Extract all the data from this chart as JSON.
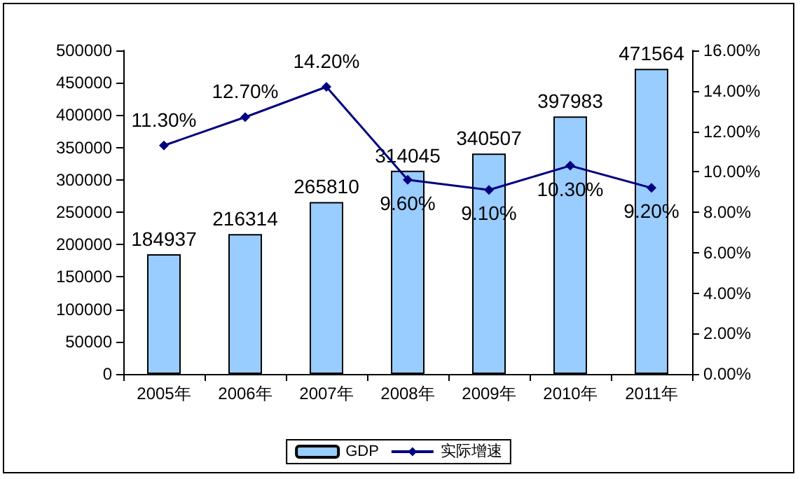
{
  "chart_data": {
    "type": "bar",
    "categories": [
      "2005年",
      "2006年",
      "2007年",
      "2008年",
      "2009年",
      "2010年",
      "2011年"
    ],
    "series": [
      {
        "name": "GDP",
        "type": "bar",
        "color": "#99ccff",
        "values": [
          184937,
          216314,
          265810,
          314045,
          340507,
          397983,
          471564
        ],
        "value_labels": [
          "184937",
          "216314",
          "265810",
          "314045",
          "340507",
          "397983",
          "471564"
        ]
      },
      {
        "name": "实际增速",
        "type": "line",
        "axis": "y2",
        "color": "#000080",
        "marker": "diamond",
        "values": [
          11.3,
          12.7,
          14.2,
          9.6,
          9.1,
          10.3,
          9.2
        ],
        "value_labels": [
          "11.30%",
          "12.70%",
          "14.20%",
          "9.60%",
          "9.10%",
          "10.30%",
          "9.20%"
        ]
      }
    ],
    "ylim": [
      0,
      500000
    ],
    "yticks": [
      0,
      50000,
      100000,
      150000,
      200000,
      250000,
      300000,
      350000,
      400000,
      450000,
      500000
    ],
    "y2lim": [
      0,
      16
    ],
    "y2ticks": [
      {
        "value": 0,
        "label": "0.00%"
      },
      {
        "value": 2,
        "label": "2.00%"
      },
      {
        "value": 4,
        "label": "4.00%"
      },
      {
        "value": 6,
        "label": "6.00%"
      },
      {
        "value": 8,
        "label": "8.00%"
      },
      {
        "value": 10,
        "label": "10.00%"
      },
      {
        "value": 12,
        "label": "12.00%"
      },
      {
        "value": 14,
        "label": "14.00%"
      },
      {
        "value": 16,
        "label": "16.00%"
      }
    ],
    "grid": false,
    "legend": "bottom"
  }
}
